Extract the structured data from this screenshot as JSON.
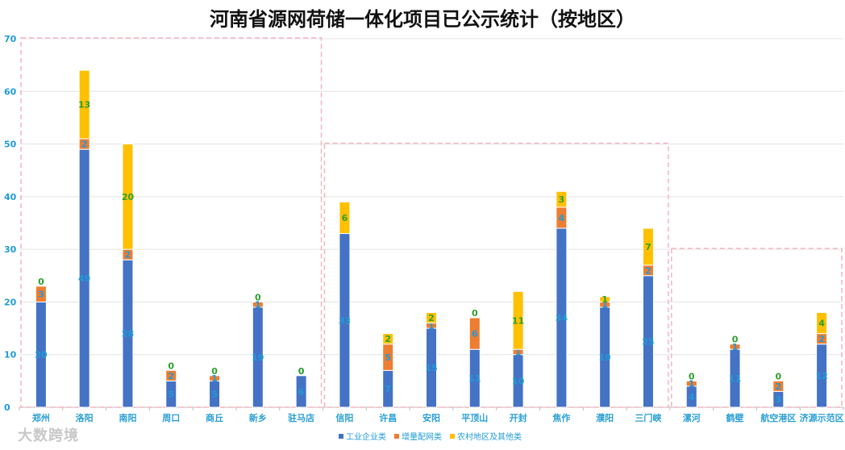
{
  "chart_data": {
    "type": "bar",
    "stacked": true,
    "title": "河南省源网荷储一体化项目已公示统计（按地区）",
    "xlabel": "",
    "ylabel": "",
    "ylim": [
      0,
      70
    ],
    "yticks": [
      0,
      10,
      20,
      30,
      40,
      50,
      60,
      70
    ],
    "grid": true,
    "legend_position": "bottom",
    "categories": [
      "郑州",
      "洛阳",
      "南阳",
      "周口",
      "商丘",
      "新乡",
      "驻马店",
      "信阳",
      "许昌",
      "安阳",
      "平顶山",
      "开封",
      "焦作",
      "濮阳",
      "三门峡",
      "漯河",
      "鹤壁",
      "航空港区",
      "济源示范区"
    ],
    "series": [
      {
        "name": "工业企业类",
        "color": "#4472c4",
        "label_color": "#1f9bd7",
        "values": [
          20,
          49,
          28,
          5,
          5,
          19,
          6,
          33,
          7,
          15,
          11,
          10,
          34,
          19,
          25,
          4,
          11,
          3,
          12
        ]
      },
      {
        "name": "增量配网类",
        "color": "#ed7d31",
        "label_color": "#1f9bd7",
        "values": [
          3,
          2,
          2,
          2,
          1,
          1,
          0,
          0,
          5,
          1,
          6,
          1,
          4,
          1,
          2,
          1,
          1,
          2,
          2
        ]
      },
      {
        "name": "农村地区及其他类",
        "color": "#ffc000",
        "label_color": "#2ca02c",
        "values": [
          0,
          13,
          20,
          0,
          0,
          0,
          0,
          6,
          2,
          2,
          0,
          11,
          3,
          1,
          7,
          0,
          0,
          0,
          4
        ]
      }
    ],
    "group_boxes": [
      {
        "from": 0,
        "to": 6,
        "ymax": 70
      },
      {
        "from": 7,
        "to": 14,
        "ymax": 50
      },
      {
        "from": 15,
        "to": 18,
        "ymax": 30
      }
    ]
  },
  "watermark": "大数跨境"
}
